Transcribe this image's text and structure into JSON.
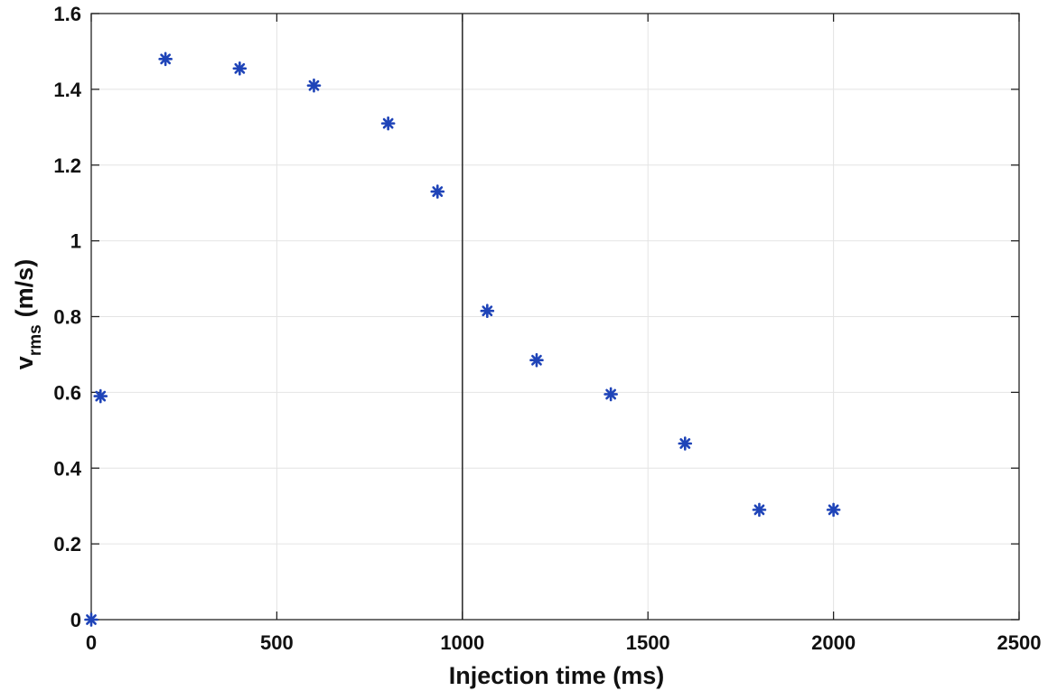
{
  "chart_data": {
    "type": "scatter",
    "xlabel": "Injection time (ms)",
    "ylabel": {
      "main": "v",
      "subscript": "rms",
      "units": "(m/s)"
    },
    "xlim": [
      0,
      2500
    ],
    "ylim": [
      0,
      1.6
    ],
    "xticks": [
      0,
      500,
      1000,
      1500,
      2000,
      2500
    ],
    "xtick_labels": [
      "0",
      "500",
      "1000",
      "1500",
      "2000",
      "2500"
    ],
    "yticks": [
      0,
      0.2,
      0.4,
      0.6,
      0.8,
      1.0,
      1.2,
      1.4,
      1.6
    ],
    "ytick_labels": [
      "0",
      "0.2",
      "0.4",
      "0.6",
      "0.8",
      "1",
      "1.2",
      "1.4",
      "1.6"
    ],
    "grid": true,
    "reference_line_x": 1000,
    "marker": "asterisk",
    "marker_color": "#1f44b8",
    "points": [
      {
        "x": 0,
        "y": 0
      },
      {
        "x": 25,
        "y": 0.59
      },
      {
        "x": 200,
        "y": 1.48
      },
      {
        "x": 400,
        "y": 1.455
      },
      {
        "x": 600,
        "y": 1.41
      },
      {
        "x": 800,
        "y": 1.31
      },
      {
        "x": 933,
        "y": 1.13
      },
      {
        "x": 1067,
        "y": 0.815
      },
      {
        "x": 1200,
        "y": 0.685
      },
      {
        "x": 1400,
        "y": 0.595
      },
      {
        "x": 1600,
        "y": 0.465
      },
      {
        "x": 1800,
        "y": 0.29
      },
      {
        "x": 2000,
        "y": 0.29
      }
    ]
  }
}
